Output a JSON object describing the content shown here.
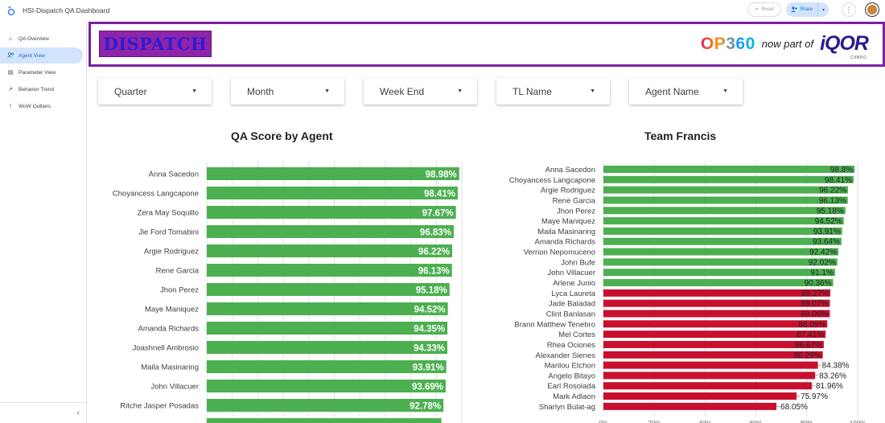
{
  "app": {
    "title": "HSI-Dispatch QA Dashboard"
  },
  "topbar": {
    "reset_label": "Reset",
    "share_label": "Share",
    "more_label": "⋮"
  },
  "sidebar": {
    "items": [
      {
        "label": "QA Overview",
        "icon": "home-icon",
        "active": false
      },
      {
        "label": "Agent View",
        "icon": "people-icon",
        "active": true
      },
      {
        "label": "Parameter View",
        "icon": "document-icon",
        "active": false
      },
      {
        "label": "Behavior Trend",
        "icon": "trend-icon",
        "active": false
      },
      {
        "label": "WoW Outliers",
        "icon": "exclamation-icon",
        "active": false
      }
    ],
    "collapse_label": "‹"
  },
  "banner": {
    "logo_text": "DISPATCH",
    "brand_text": "OP360",
    "now_part_text": "now part of",
    "partner_text": "iQOR",
    "partner_sub": "CXBPO"
  },
  "filters": [
    {
      "label": "Quarter"
    },
    {
      "label": "Month"
    },
    {
      "label": "Week End"
    },
    {
      "label": "TL Name"
    },
    {
      "label": "Agent Name"
    }
  ],
  "charts": {
    "left_title": "QA Score by Agent",
    "right_title": "Team Francis"
  },
  "colors": {
    "green": "#4caf50",
    "red": "#c8102e",
    "accent": "#7b1fa2"
  },
  "chart_data": [
    {
      "type": "bar",
      "orientation": "horizontal",
      "title": "QA Score by Agent",
      "categories": [
        "Anna Sacedon",
        "Choyancess Langcapone",
        "Zera May Soquillo",
        "Jie Ford Tomabini",
        "Argie Rodriguez",
        "Rene Garcia",
        "Jhon Perez",
        "Maye Maniquez",
        "Amanda Richards",
        "Joashnell Ambrosio",
        "Maila Masinaring",
        "John Villacuer",
        "Ritche Jasper Posadas"
      ],
      "values": [
        98.98,
        98.41,
        97.67,
        96.83,
        96.22,
        96.13,
        95.18,
        94.52,
        94.35,
        94.33,
        93.91,
        93.69,
        92.78
      ],
      "labels": [
        "98.98%",
        "98.41%",
        "97.67%",
        "96.83%",
        "96.22%",
        "96.13%",
        "95.18%",
        "94.52%",
        "94.35%",
        "94.33%",
        "93.91%",
        "93.69%",
        "92.78%"
      ],
      "xlim": [
        0,
        100
      ],
      "grid": true
    },
    {
      "type": "bar",
      "orientation": "horizontal",
      "title": "Team Francis",
      "categories": [
        "Anna Sacedon",
        "Choyancess Langcapone",
        "Argie Rodriguez",
        "Rene Garcia",
        "Jhon Perez",
        "Maye Maniquez",
        "Maila Masinaring",
        "Amanda Richards",
        "Vernon Nepomuceno",
        "John Bufe",
        "John Villacuer",
        "Arlene Junio",
        "Lyca Laureta",
        "Jade Baladad",
        "Clint Banlasan",
        "Brann Matthew Tenebro",
        "Mel Cortes",
        "Rhea Ociones",
        "Alexander Sienes",
        "Marilou Etchon",
        "Angelo Bitayo",
        "Earl Rosolada",
        "Mark Adlaon",
        "Sharlyn Bulat-ag"
      ],
      "values": [
        98.8,
        98.41,
        96.22,
        96.13,
        95.18,
        94.52,
        93.91,
        93.64,
        92.42,
        92.02,
        91.1,
        90.36,
        89.27,
        89.07,
        89.06,
        88.05,
        87.41,
        86.67,
        86.29,
        84.38,
        83.26,
        81.96,
        75.97,
        68.05
      ],
      "labels": [
        "98.8%",
        "98.41%",
        "96.22%",
        "96.13%",
        "95.18%",
        "94.52%",
        "93.91%",
        "93.64%",
        "92.42%",
        "92.02%",
        "91.1%",
        "90.36%",
        "89.27%",
        "89.07%",
        "89.06%",
        "88.05%",
        "87.41%",
        "86.67%",
        "86.29%",
        "84.38%",
        "83.26%",
        "81.96%",
        "75.97%",
        "68.05%"
      ],
      "passing": [
        true,
        true,
        true,
        true,
        true,
        true,
        true,
        true,
        true,
        true,
        true,
        true,
        false,
        false,
        false,
        false,
        false,
        false,
        false,
        false,
        false,
        false,
        false,
        false
      ],
      "xlim": [
        0,
        100
      ],
      "xticks": [
        "0%",
        "20%",
        "40%",
        "60%",
        "80%",
        "100%"
      ],
      "grid": true
    }
  ]
}
